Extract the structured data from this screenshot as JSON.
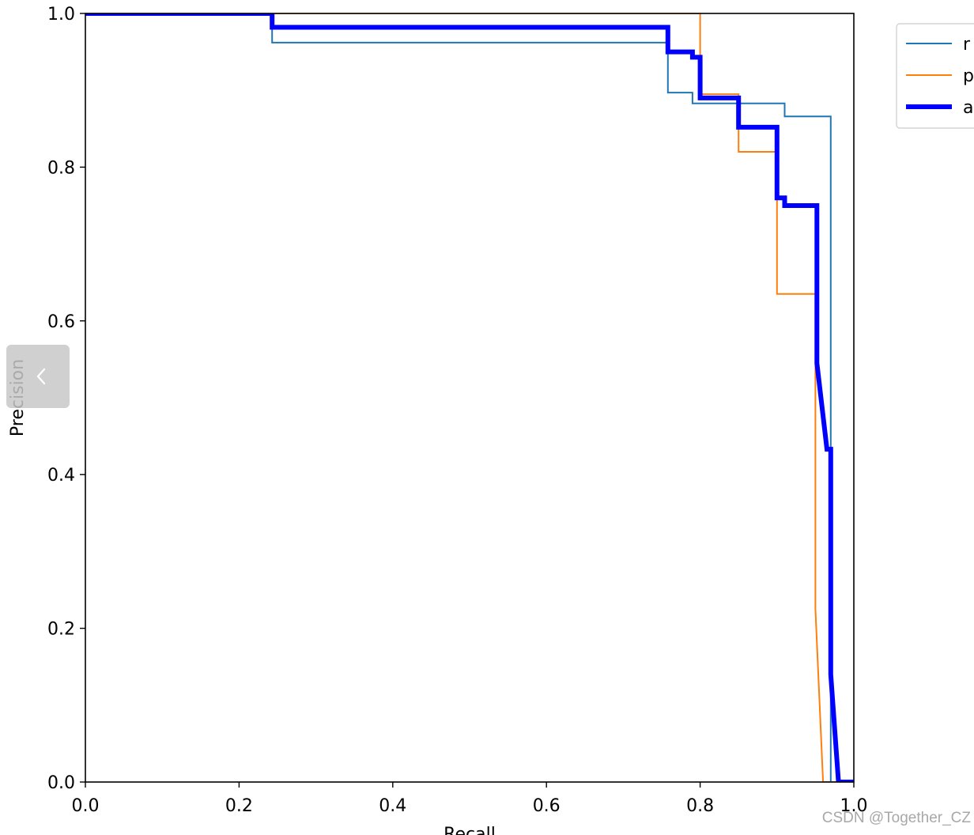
{
  "chart_data": {
    "type": "line",
    "title": "",
    "xlabel": "Recall",
    "ylabel": "Precision",
    "xlim": [
      0.0,
      1.0
    ],
    "ylim": [
      0.0,
      1.0
    ],
    "xticks": [
      "0.0",
      "0.2",
      "0.4",
      "0.6",
      "0.8",
      "1.0"
    ],
    "yticks": [
      "0.0",
      "0.2",
      "0.4",
      "0.6",
      "0.8",
      "1.0"
    ],
    "grid": false,
    "legend_position": "outside top-right",
    "series": [
      {
        "name": "r",
        "color": "#1f77b4",
        "points": [
          [
            0.0,
            1.0
          ],
          [
            0.243,
            1.0
          ],
          [
            0.243,
            0.962
          ],
          [
            0.758,
            0.962
          ],
          [
            0.758,
            0.897
          ],
          [
            0.79,
            0.897
          ],
          [
            0.79,
            0.883
          ],
          [
            0.91,
            0.883
          ],
          [
            0.91,
            0.866
          ],
          [
            0.97,
            0.866
          ],
          [
            0.97,
            0.0
          ],
          [
            1.0,
            0.0
          ]
        ]
      },
      {
        "name": "p",
        "color": "#ff7f0e",
        "points": [
          [
            0.0,
            1.0
          ],
          [
            0.8,
            1.0
          ],
          [
            0.8,
            0.895
          ],
          [
            0.85,
            0.895
          ],
          [
            0.85,
            0.82
          ],
          [
            0.9,
            0.82
          ],
          [
            0.9,
            0.635
          ],
          [
            0.95,
            0.635
          ],
          [
            0.95,
            0.225
          ],
          [
            0.96,
            0.0
          ],
          [
            1.0,
            0.0
          ]
        ]
      },
      {
        "name": "a",
        "color": "#0000ff",
        "points": [
          [
            0.0,
            1.0
          ],
          [
            0.243,
            1.0
          ],
          [
            0.243,
            0.982
          ],
          [
            0.758,
            0.982
          ],
          [
            0.758,
            0.95
          ],
          [
            0.79,
            0.95
          ],
          [
            0.79,
            0.943
          ],
          [
            0.8,
            0.943
          ],
          [
            0.8,
            0.89
          ],
          [
            0.85,
            0.89
          ],
          [
            0.85,
            0.852
          ],
          [
            0.9,
            0.852
          ],
          [
            0.9,
            0.76
          ],
          [
            0.91,
            0.76
          ],
          [
            0.91,
            0.75
          ],
          [
            0.952,
            0.75
          ],
          [
            0.952,
            0.545
          ],
          [
            0.965,
            0.433
          ],
          [
            0.97,
            0.433
          ],
          [
            0.97,
            0.2
          ],
          [
            0.97,
            0.14
          ],
          [
            0.98,
            0.0
          ],
          [
            1.0,
            0.0
          ]
        ]
      }
    ]
  },
  "watermark": "CSDN @Together_CZ",
  "ui": {
    "side_handle_icon": "chevron-left-icon"
  }
}
